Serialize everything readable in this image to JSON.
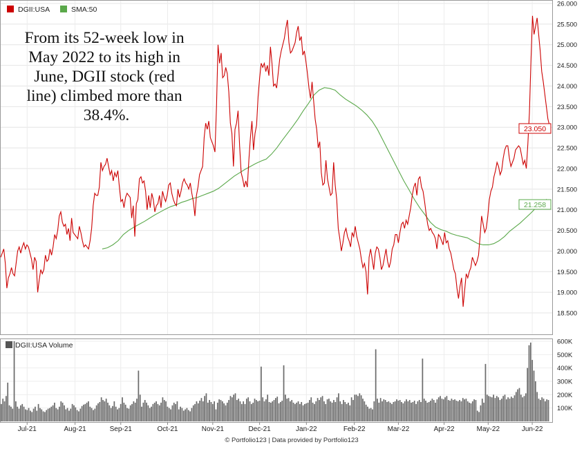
{
  "chart_data": {
    "type": "line",
    "legend": [
      {
        "name": "DGII:USA",
        "color": "#cc0000"
      },
      {
        "name": "SMA:50",
        "color": "#5aa84a"
      }
    ],
    "annotation": [
      "From its 52-week low in",
      "May 2022 to its high in",
      "June, DGII stock (red",
      "line) climbed more than",
      "38.4%."
    ],
    "price_axis": {
      "ticks": [
        "26.000",
        "25.500",
        "25.000",
        "24.500",
        "24.000",
        "23.500",
        "23.000",
        "22.500",
        "22.000",
        "21.500",
        "21.000",
        "20.500",
        "20.000",
        "19.500",
        "19.000",
        "18.500"
      ],
      "ylim": [
        18.3,
        26.0
      ],
      "side": "right",
      "grid": true
    },
    "volume_axis": {
      "ticks": [
        "600K",
        "500K",
        "400K",
        "300K",
        "200K",
        "100K"
      ],
      "ylim": [
        0,
        600000
      ],
      "side": "right"
    },
    "x_tick_labels": [
      "Jul-21",
      "Aug-21",
      "Sep-21",
      "Oct-21",
      "Nov-21",
      "Dec-21",
      "Jan-22",
      "Feb-22",
      "Mar-22",
      "Apr-22",
      "May-22",
      "Jun-22"
    ],
    "price_series": {
      "name": "DGII:USA",
      "values": [
        19.85,
        19.95,
        20.05,
        19.7,
        19.1,
        19.35,
        19.45,
        19.6,
        19.45,
        19.4,
        19.7,
        20.0,
        20.1,
        19.95,
        20.1,
        20.2,
        20.05,
        20.15,
        20.1,
        19.95,
        19.8,
        19.55,
        19.85,
        19.75,
        19.0,
        19.3,
        19.55,
        19.45,
        19.55,
        19.9,
        19.75,
        19.8,
        20.05,
        19.9,
        20.1,
        20.4,
        20.3,
        20.5,
        20.85,
        20.95,
        20.7,
        20.6,
        20.65,
        20.4,
        20.55,
        20.25,
        20.8,
        20.45,
        20.4,
        20.35,
        20.3,
        20.6,
        20.45,
        20.25,
        20.1,
        20.15,
        20.1,
        20.05,
        20.25,
        20.55,
        21.1,
        21.4,
        21.35,
        21.35,
        21.55,
        22.15,
        21.95,
        22.05,
        22.1,
        22.25,
        22.05,
        21.85,
        21.95,
        21.7,
        21.9,
        21.8,
        21.95,
        21.55,
        21.2,
        21.25,
        21.05,
        21.3,
        21.4,
        21.35,
        21.3,
        20.8,
        21.1,
        20.35,
        21.15,
        21.25,
        21.75,
        21.8,
        21.65,
        21.7,
        21.45,
        21.0,
        21.35,
        21.05,
        21.4,
        21.25,
        20.95,
        21.1,
        21.15,
        21.35,
        21.05,
        21.45,
        21.3,
        21.2,
        21.35,
        21.6,
        21.65,
        21.4,
        21.25,
        21.15,
        21.1,
        21.5,
        21.3,
        21.45,
        21.65,
        21.75,
        21.65,
        21.6,
        21.5,
        21.65,
        21.4,
        21.2,
        20.85,
        21.35,
        21.55,
        21.85,
        21.95,
        22.05,
        22.75,
        23.1,
        22.95,
        23.15,
        22.75,
        22.65,
        22.55,
        22.4,
        23.5,
        25.0,
        24.55,
        24.8,
        24.2,
        24.25,
        24.45,
        24.3,
        23.85,
        23.1,
        22.85,
        22.05,
        22.95,
        23.1,
        23.4,
        22.55,
        21.9,
        21.75,
        21.55,
        21.7,
        21.55,
        22.2,
        22.75,
        23.15,
        22.45,
        22.85,
        23.05,
        23.75,
        24.2,
        24.55,
        24.45,
        24.55,
        24.35,
        24.5,
        24.25,
        24.95,
        24.55,
        24.0,
        24.05,
        23.95,
        24.3,
        24.65,
        24.85,
        25.0,
        25.15,
        25.4,
        25.6,
        25.05,
        24.8,
        24.85,
        24.95,
        25.05,
        25.3,
        25.45,
        25.1,
        25.2,
        24.75,
        24.85,
        24.6,
        24.3,
        23.95,
        23.7,
        24.1,
        23.65,
        23.2,
        22.95,
        22.5,
        22.65,
        21.9,
        21.6,
        21.65,
        22.2,
        21.75,
        21.55,
        21.35,
        21.4,
        22.15,
        21.6,
        21.25,
        20.55,
        20.3,
        20.0,
        20.2,
        20.45,
        20.55,
        20.35,
        20.25,
        20.1,
        20.45,
        20.35,
        20.6,
        20.35,
        20.2,
        20.05,
        19.8,
        19.6,
        19.7,
        19.5,
        18.95,
        19.85,
        20.05,
        19.8,
        19.55,
        19.95,
        20.1,
        20.05,
        19.85,
        19.55,
        19.65,
        19.85,
        20.05,
        19.75,
        19.6,
        19.75,
        20.05,
        20.15,
        20.4,
        20.4,
        20.2,
        20.45,
        20.65,
        20.7,
        20.55,
        20.75,
        20.65,
        20.85,
        21.05,
        21.35,
        21.55,
        21.65,
        21.35,
        21.75,
        21.8,
        21.55,
        21.45,
        21.2,
        20.9,
        20.65,
        20.5,
        20.55,
        20.45,
        20.4,
        20.3,
        20.05,
        20.4,
        20.35,
        20.25,
        20.15,
        20.45,
        20.2,
        20.25,
        20.05,
        19.95,
        19.75,
        19.55,
        19.45,
        19.1,
        18.85,
        19.15,
        19.35,
        18.65,
        19.05,
        19.45,
        19.35,
        19.5,
        19.6,
        19.85,
        19.75,
        19.65,
        19.75,
        19.9,
        20.35,
        20.85,
        20.65,
        20.45,
        20.55,
        20.85,
        21.25,
        21.45,
        21.55,
        21.8,
        21.95,
        22.15,
        22.05,
        21.85,
        21.95,
        22.25,
        22.45,
        22.55,
        22.55,
        22.25,
        22.05,
        22.15,
        22.25,
        22.45,
        22.5,
        22.55,
        22.5,
        22.3,
        22.1,
        22.2,
        22.0,
        22.6,
        23.35,
        24.6,
        25.7,
        25.25,
        25.45,
        25.65,
        25.25,
        24.85,
        24.35,
        24.1,
        23.8,
        23.5,
        23.2,
        23.05
      ]
    },
    "sma_series": {
      "name": "SMA:50",
      "values": [
        20.05,
        20.08,
        20.15,
        20.25,
        20.4,
        20.5,
        20.58,
        20.65,
        20.72,
        20.8,
        20.88,
        20.95,
        21.02,
        21.08,
        21.12,
        21.18,
        21.22,
        21.27,
        21.3,
        21.35,
        21.4,
        21.45,
        21.52,
        21.62,
        21.72,
        21.82,
        21.9,
        21.98,
        22.05,
        22.12,
        22.18,
        22.23,
        22.35,
        22.5,
        22.68,
        22.85,
        23.02,
        23.2,
        23.4,
        23.58,
        23.78,
        23.9,
        23.96,
        23.94,
        23.9,
        23.78,
        23.68,
        23.6,
        23.52,
        23.42,
        23.3,
        23.15,
        22.95,
        22.7,
        22.45,
        22.2,
        21.95,
        21.7,
        21.48,
        21.25,
        21.05,
        20.88,
        20.7,
        20.58,
        20.52,
        20.48,
        20.42,
        20.38,
        20.35,
        20.32,
        20.25,
        20.18,
        20.15,
        20.15,
        20.18,
        20.25,
        20.35,
        20.48,
        20.58,
        20.68,
        20.8,
        20.92,
        21.05,
        21.15,
        21.258
      ]
    },
    "volume_series": {
      "name": "DGII:USA Volume",
      "values": [
        130000,
        170000,
        150000,
        190000,
        290000,
        120000,
        110000,
        95000,
        600000,
        150000,
        110000,
        95000,
        120000,
        130000,
        110000,
        90000,
        85000,
        100000,
        80000,
        70000,
        95000,
        110000,
        80000,
        130000,
        100000,
        90000,
        75000,
        70000,
        85000,
        95000,
        100000,
        110000,
        120000,
        140000,
        100000,
        90000,
        110000,
        150000,
        140000,
        120000,
        90000,
        100000,
        80000,
        95000,
        130000,
        120000,
        105000,
        85000,
        75000,
        95000,
        115000,
        125000,
        130000,
        140000,
        150000,
        110000,
        100000,
        85000,
        95000,
        120000,
        135000,
        145000,
        180000,
        160000,
        150000,
        170000,
        140000,
        120000,
        100000,
        115000,
        150000,
        110000,
        90000,
        100000,
        130000,
        180000,
        140000,
        125000,
        100000,
        95000,
        120000,
        130000,
        150000,
        140000,
        170000,
        380000,
        200000,
        110000,
        140000,
        160000,
        140000,
        120000,
        100000,
        110000,
        130000,
        140000,
        150000,
        130000,
        120000,
        140000,
        180000,
        160000,
        150000,
        110000,
        100000,
        90000,
        120000,
        140000,
        130000,
        150000,
        90000,
        110000,
        100000,
        80000,
        90000,
        100000,
        85000,
        75000,
        100000,
        120000,
        130000,
        150000,
        135000,
        155000,
        175000,
        150000,
        190000,
        210000,
        140000,
        160000,
        145000,
        130000,
        150000,
        90000,
        140000,
        165000,
        160000,
        150000,
        135000,
        120000,
        140000,
        160000,
        190000,
        180000,
        200000,
        210000,
        160000,
        170000,
        150000,
        130000,
        150000,
        130000,
        170000,
        180000,
        150000,
        130000,
        140000,
        170000,
        160000,
        150000,
        155000,
        410000,
        180000,
        150000,
        165000,
        200000,
        145000,
        140000,
        150000,
        160000,
        175000,
        185000,
        135000,
        145000,
        155000,
        420000,
        200000,
        170000,
        175000,
        150000,
        160000,
        140000,
        130000,
        140000,
        150000,
        130000,
        145000,
        120000,
        130000,
        135000,
        140000,
        160000,
        180000,
        140000,
        130000,
        150000,
        175000,
        160000,
        180000,
        190000,
        150000,
        130000,
        165000,
        170000,
        150000,
        140000,
        160000,
        145000,
        180000,
        210000,
        150000,
        130000,
        160000,
        145000,
        130000,
        140000,
        120000,
        180000,
        160000,
        200000,
        200000,
        190000,
        210000,
        195000,
        170000,
        150000,
        125000,
        110000,
        95000,
        100000,
        90000,
        150000,
        540000,
        170000,
        140000,
        175000,
        150000,
        165000,
        160000,
        145000,
        150000,
        140000,
        130000,
        145000,
        150000,
        165000,
        155000,
        160000,
        145000,
        135000,
        150000,
        165000,
        150000,
        160000,
        140000,
        145000,
        155000,
        130000,
        150000,
        160000,
        145000,
        470000,
        170000,
        155000,
        140000,
        145000,
        155000,
        170000,
        160000,
        140000,
        165000,
        180000,
        190000,
        170000,
        165000,
        180000,
        190000,
        160000,
        155000,
        170000,
        160000,
        165000,
        155000,
        150000,
        160000,
        150000,
        175000,
        165000,
        170000,
        150000,
        140000,
        135000,
        150000,
        165000,
        160000,
        80000,
        70000,
        120000,
        170000,
        140000,
        430000,
        200000,
        190000,
        185000,
        180000,
        200000,
        175000,
        190000,
        180000,
        160000,
        170000,
        190000,
        200000,
        165000,
        180000,
        170000,
        185000,
        175000,
        195000,
        220000,
        240000,
        250000,
        200000,
        180000,
        190000,
        210000,
        400000,
        570000,
        590000,
        460000,
        380000,
        300000,
        220000,
        170000,
        160000,
        180000,
        170000,
        150000,
        165000,
        160000
      ]
    },
    "last_price_label": "23.050",
    "last_sma_label": "21.258",
    "footer": "© Portfolio123 | Data provided by Portfolio123"
  }
}
